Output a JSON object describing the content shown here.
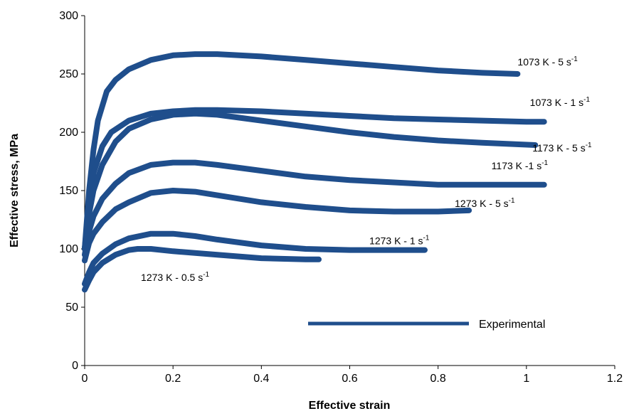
{
  "chart_data": {
    "type": "line",
    "title": "",
    "xlabel": "Effective  strain",
    "ylabel": "Effective  stress,  MPa",
    "xlim": [
      0,
      1.2
    ],
    "ylim": [
      0,
      300
    ],
    "x_ticks": [
      0,
      0.2,
      0.4,
      0.6,
      0.8,
      1,
      1.2
    ],
    "x_tick_labels": [
      "0",
      "0.2",
      "0.4",
      "0.6",
      "0.8",
      "1",
      "1.2"
    ],
    "y_ticks": [
      0,
      50,
      100,
      150,
      200,
      250,
      300
    ],
    "y_tick_labels": [
      "0",
      "50",
      "100",
      "150",
      "200",
      "250",
      "300"
    ],
    "grid": false,
    "legend": {
      "position": "bottom-right",
      "entries": [
        "Experimental"
      ]
    },
    "line_color": "#1f4e8c",
    "series": [
      {
        "label": "1073 K - 5 s",
        "superscript": "-1",
        "points": [
          [
            0,
            100
          ],
          [
            0.01,
            150
          ],
          [
            0.02,
            185
          ],
          [
            0.03,
            210
          ],
          [
            0.05,
            235
          ],
          [
            0.07,
            245
          ],
          [
            0.1,
            254
          ],
          [
            0.15,
            262
          ],
          [
            0.2,
            266
          ],
          [
            0.25,
            267
          ],
          [
            0.3,
            267
          ],
          [
            0.4,
            265
          ],
          [
            0.5,
            262
          ],
          [
            0.6,
            259
          ],
          [
            0.7,
            256
          ],
          [
            0.8,
            253
          ],
          [
            0.9,
            251
          ],
          [
            0.98,
            250
          ]
        ]
      },
      {
        "label": "1073 K - 1 s",
        "superscript": "-1",
        "points": [
          [
            0,
            100
          ],
          [
            0.01,
            140
          ],
          [
            0.02,
            165
          ],
          [
            0.04,
            188
          ],
          [
            0.06,
            200
          ],
          [
            0.1,
            210
          ],
          [
            0.15,
            216
          ],
          [
            0.2,
            218
          ],
          [
            0.25,
            219
          ],
          [
            0.3,
            219
          ],
          [
            0.4,
            218
          ],
          [
            0.5,
            216
          ],
          [
            0.6,
            214
          ],
          [
            0.7,
            212
          ],
          [
            0.8,
            211
          ],
          [
            0.9,
            210
          ],
          [
            1.0,
            209
          ],
          [
            1.04,
            209
          ]
        ]
      },
      {
        "label": "1173 K - 5 s",
        "superscript": "-1",
        "points": [
          [
            0,
            100
          ],
          [
            0.01,
            130
          ],
          [
            0.02,
            150
          ],
          [
            0.04,
            172
          ],
          [
            0.07,
            192
          ],
          [
            0.1,
            203
          ],
          [
            0.15,
            211
          ],
          [
            0.2,
            215
          ],
          [
            0.25,
            216
          ],
          [
            0.3,
            215
          ],
          [
            0.4,
            210
          ],
          [
            0.5,
            205
          ],
          [
            0.6,
            200
          ],
          [
            0.7,
            196
          ],
          [
            0.8,
            193
          ],
          [
            0.9,
            191
          ],
          [
            1.02,
            189
          ]
        ]
      },
      {
        "label": "1173 K -1 s",
        "superscript": "-1",
        "points": [
          [
            0,
            95
          ],
          [
            0.01,
            115
          ],
          [
            0.02,
            128
          ],
          [
            0.04,
            143
          ],
          [
            0.07,
            156
          ],
          [
            0.1,
            165
          ],
          [
            0.15,
            172
          ],
          [
            0.2,
            174
          ],
          [
            0.25,
            174
          ],
          [
            0.3,
            172
          ],
          [
            0.4,
            167
          ],
          [
            0.5,
            162
          ],
          [
            0.6,
            159
          ],
          [
            0.7,
            157
          ],
          [
            0.8,
            155
          ],
          [
            0.9,
            155
          ],
          [
            1.04,
            155
          ]
        ]
      },
      {
        "label": "1273 K - 5 s",
        "superscript": "-1",
        "points": [
          [
            0,
            90
          ],
          [
            0.01,
            105
          ],
          [
            0.02,
            113
          ],
          [
            0.04,
            123
          ],
          [
            0.07,
            134
          ],
          [
            0.1,
            140
          ],
          [
            0.15,
            148
          ],
          [
            0.2,
            150
          ],
          [
            0.25,
            149
          ],
          [
            0.3,
            146
          ],
          [
            0.4,
            140
          ],
          [
            0.5,
            136
          ],
          [
            0.6,
            133
          ],
          [
            0.7,
            132
          ],
          [
            0.8,
            132
          ],
          [
            0.87,
            133
          ]
        ]
      },
      {
        "label": "1273 K - 1 s",
        "superscript": "-1",
        "points": [
          [
            0,
            70
          ],
          [
            0.01,
            80
          ],
          [
            0.02,
            88
          ],
          [
            0.04,
            96
          ],
          [
            0.07,
            104
          ],
          [
            0.1,
            109
          ],
          [
            0.15,
            113
          ],
          [
            0.2,
            113
          ],
          [
            0.25,
            111
          ],
          [
            0.3,
            108
          ],
          [
            0.4,
            103
          ],
          [
            0.5,
            100
          ],
          [
            0.6,
            99
          ],
          [
            0.7,
            99
          ],
          [
            0.77,
            99
          ]
        ]
      },
      {
        "label": "1273  K - 0.5 s",
        "superscript": "-1",
        "points": [
          [
            0,
            65
          ],
          [
            0.01,
            73
          ],
          [
            0.02,
            80
          ],
          [
            0.04,
            88
          ],
          [
            0.07,
            95
          ],
          [
            0.1,
            99
          ],
          [
            0.12,
            100
          ],
          [
            0.15,
            100
          ],
          [
            0.2,
            98
          ],
          [
            0.3,
            95
          ],
          [
            0.4,
            92
          ],
          [
            0.5,
            91
          ],
          [
            0.53,
            91
          ]
        ]
      }
    ]
  }
}
